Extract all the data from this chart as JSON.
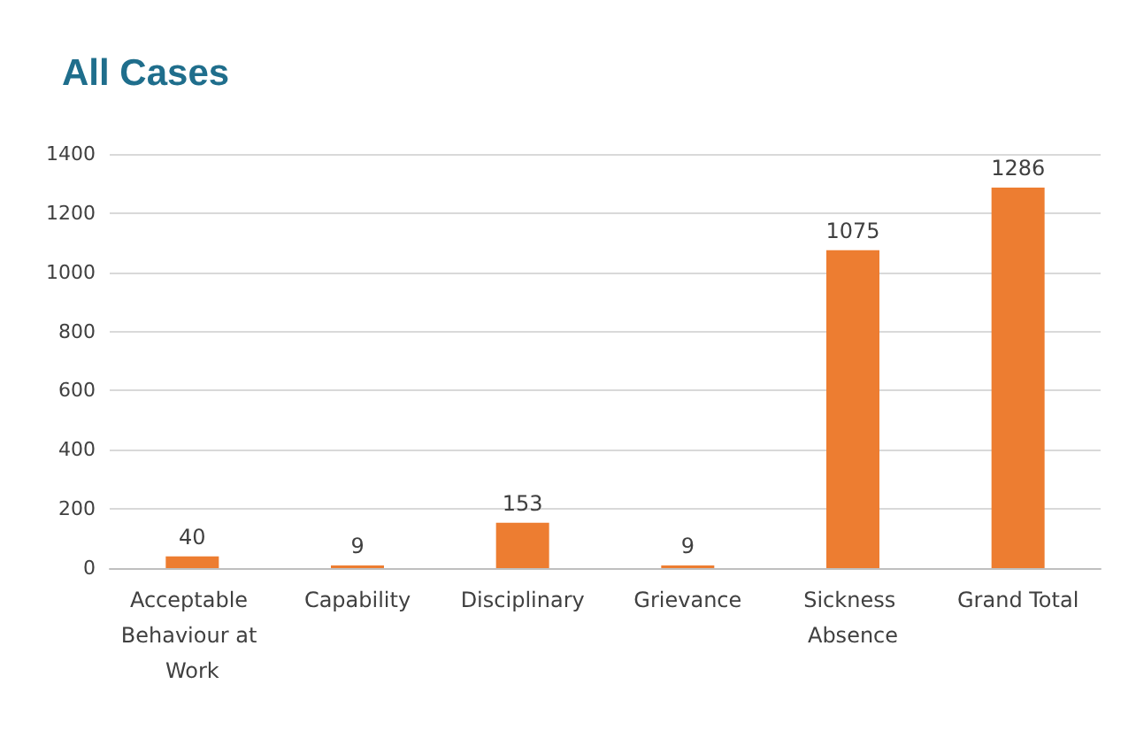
{
  "chart_data": {
    "type": "bar",
    "title": "All Cases",
    "categories": [
      "Acceptable Behaviour at Work",
      "Capability",
      "Disciplinary",
      "Grievance",
      "Sickness Absence",
      "Grand Total"
    ],
    "values": [
      40,
      9,
      153,
      9,
      1075,
      1286
    ],
    "color": "#ed7d31",
    "ylim": [
      0,
      1400
    ],
    "yticks": [
      0,
      200,
      400,
      600,
      800,
      1000,
      1200,
      1400
    ],
    "grid": "y",
    "data_labels": true
  }
}
